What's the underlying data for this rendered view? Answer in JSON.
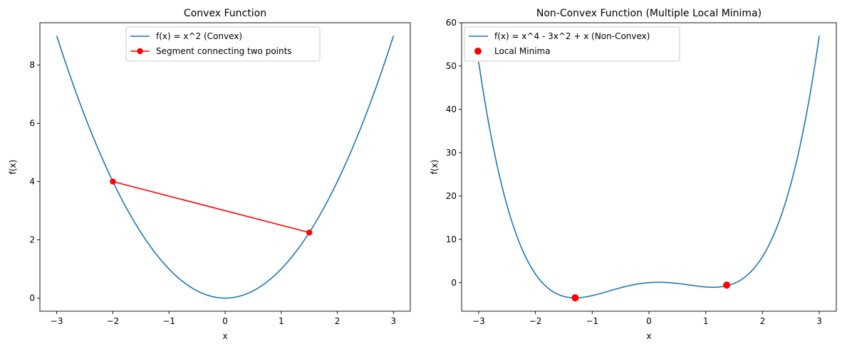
{
  "chart_data": [
    {
      "type": "line",
      "title": "Convex Function",
      "xlabel": "x",
      "ylabel": "f(x)",
      "xlim": [
        -3.3,
        3.3
      ],
      "ylim": [
        -0.45,
        9.45
      ],
      "xticks": [
        -3,
        -2,
        -1,
        0,
        1,
        2,
        3
      ],
      "xtick_labels": [
        "−3",
        "−2",
        "−1",
        "0",
        "1",
        "2",
        "3"
      ],
      "yticks": [
        0,
        2,
        4,
        6,
        8
      ],
      "ytick_labels": [
        "0",
        "2",
        "4",
        "6",
        "8"
      ],
      "legend_placement": "top-center",
      "grid": false,
      "series": [
        {
          "name": "f(x) = x^2 (Convex)",
          "color": "#1f77b4",
          "x": [
            -3.0,
            -2.5,
            -2.0,
            -1.5,
            -1.0,
            -0.5,
            0.0,
            0.5,
            1.0,
            1.5,
            2.0,
            2.5,
            3.0
          ],
          "y": [
            9.0,
            6.25,
            4.0,
            2.25,
            1.0,
            0.25,
            0.0,
            0.25,
            1.0,
            2.25,
            4.0,
            6.25,
            9.0
          ]
        },
        {
          "name": "Segment connecting two points",
          "color": "#ff0000",
          "marker": "circle",
          "x": [
            -2.0,
            1.5
          ],
          "y": [
            4.0,
            2.25
          ]
        }
      ]
    },
    {
      "type": "line",
      "title": "Non-Convex Function (Multiple Local Minima)",
      "xlabel": "x",
      "ylabel": "f(x)",
      "xlim": [
        -3.3,
        3.3
      ],
      "ylim": [
        -6.6,
        60.0
      ],
      "xticks": [
        -3,
        -2,
        -1,
        0,
        1,
        2,
        3
      ],
      "xtick_labels": [
        "−3",
        "−2",
        "−1",
        "0",
        "1",
        "2",
        "3"
      ],
      "yticks": [
        0,
        10,
        20,
        30,
        40,
        50,
        60
      ],
      "ytick_labels": [
        "0",
        "10",
        "20",
        "30",
        "40",
        "50",
        "60"
      ],
      "legend_placement": "top-left",
      "grid": false,
      "series": [
        {
          "name": "f(x) = x^4 - 3x^2 + x (Non-Convex)",
          "color": "#1f77b4",
          "x": [
            -3.0,
            -2.75,
            -2.5,
            -2.25,
            -2.0,
            -1.75,
            -1.5,
            -1.3,
            -1.0,
            -0.5,
            0.0,
            0.17,
            0.5,
            1.0,
            1.13,
            1.5,
            2.0,
            2.25,
            2.5,
            2.75,
            3.0
          ],
          "y": [
            51.0,
            31.75,
            18.81,
            9.69,
            2.0,
            -1.56,
            -3.19,
            -3.51,
            -3.0,
            -1.19,
            0.0,
            0.08,
            -0.19,
            -1.0,
            -1.07,
            -0.19,
            6.0,
            11.66,
            20.81,
            34.22,
            57.0
          ]
        },
        {
          "name": "Local Minima",
          "type": "scatter",
          "color": "#ff0000",
          "x": [
            -1.3,
            1.37
          ],
          "y": [
            -3.51,
            -0.57
          ]
        }
      ]
    }
  ]
}
